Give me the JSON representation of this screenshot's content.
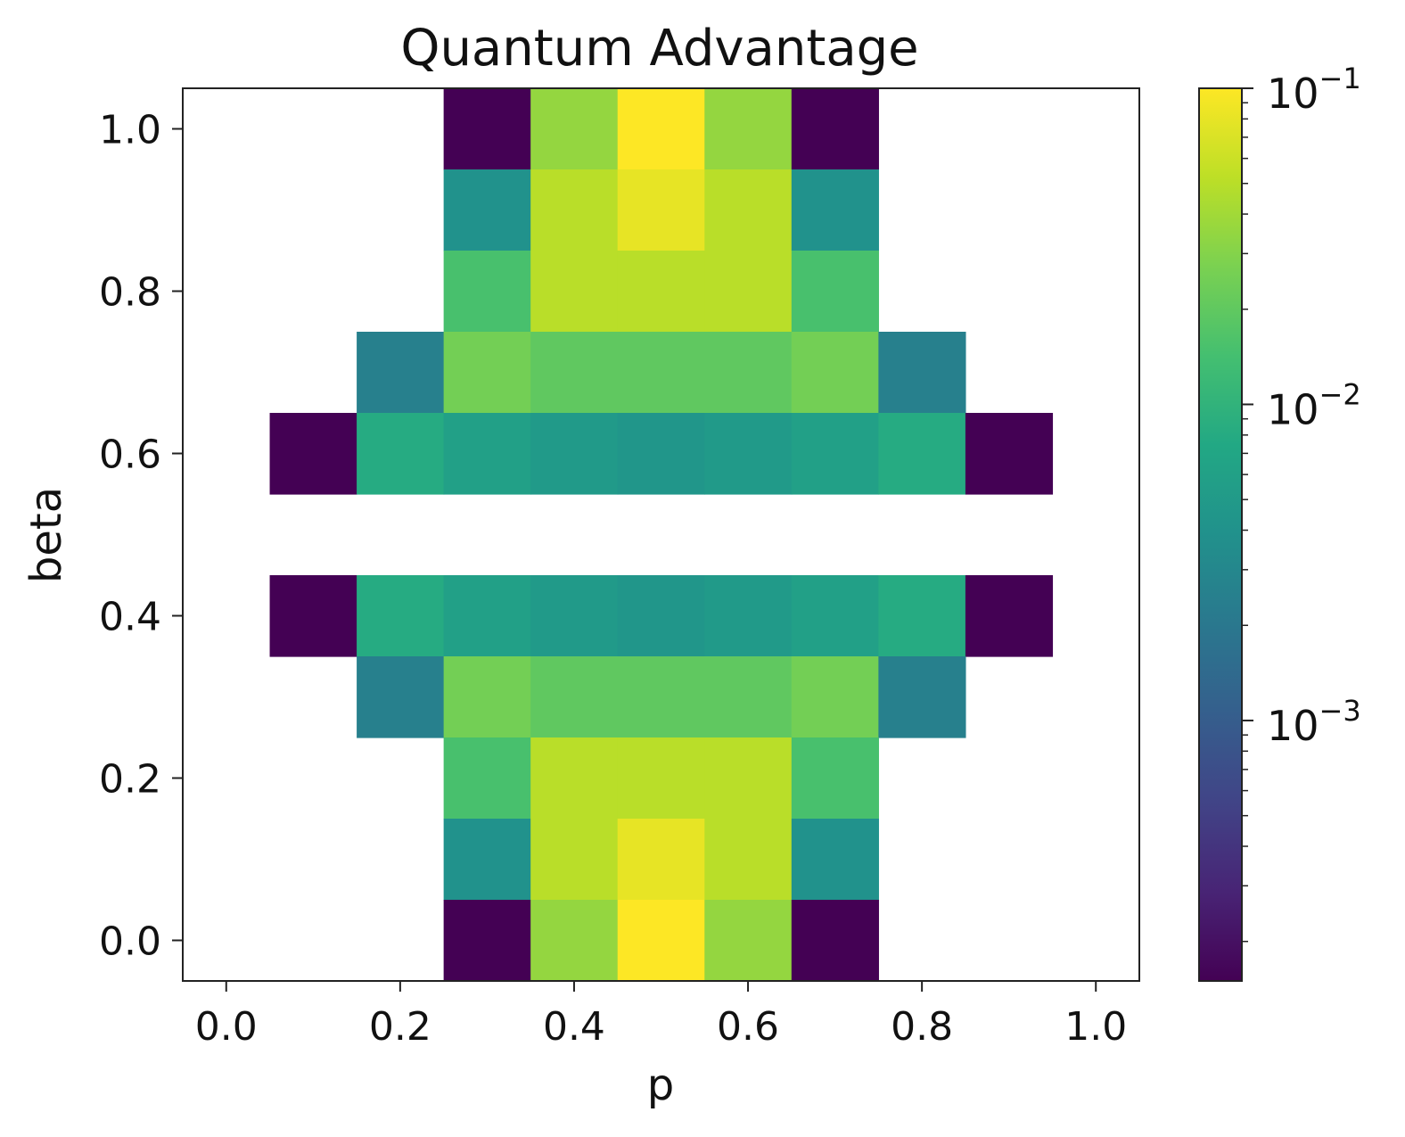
{
  "chart_data": {
    "type": "heatmap",
    "title": "Quantum Advantage",
    "xlabel": "p",
    "ylabel": "beta",
    "xlim": [
      -0.05,
      1.05
    ],
    "ylim": [
      -0.05,
      1.05
    ],
    "x_ticks": [
      0.0,
      0.2,
      0.4,
      0.6,
      0.8,
      1.0
    ],
    "x_tick_labels": [
      "0.0",
      "0.2",
      "0.4",
      "0.6",
      "0.8",
      "1.0"
    ],
    "y_ticks": [
      0.0,
      0.2,
      0.4,
      0.6,
      0.8,
      1.0
    ],
    "y_tick_labels": [
      "0.0",
      "0.2",
      "0.4",
      "0.6",
      "0.8",
      "1.0"
    ],
    "x_centers": [
      0.0,
      0.1,
      0.2,
      0.3,
      0.4,
      0.5,
      0.6,
      0.7,
      0.8,
      0.9,
      1.0
    ],
    "cell_width": 0.1,
    "cell_height": 0.1,
    "colormap": "viridis",
    "color_scale": "log",
    "color_range": [
      0.00015,
      0.1
    ],
    "colorbar": {
      "major_ticks": [
        {
          "value": 0.1,
          "base": "10",
          "exponent": "−1"
        },
        {
          "value": 0.01,
          "base": "10",
          "exponent": "−2"
        },
        {
          "value": 0.001,
          "base": "10",
          "exponent": "−3"
        }
      ],
      "minor_ticks": [
        0.0002,
        0.0003,
        0.0004,
        0.0005,
        0.0006,
        0.0007,
        0.0008,
        0.0009,
        0.002,
        0.003,
        0.004,
        0.005,
        0.006,
        0.007,
        0.008,
        0.009,
        0.02,
        0.03,
        0.04,
        0.05,
        0.06,
        0.07,
        0.08,
        0.09
      ]
    },
    "rows": [
      {
        "beta": 1.0,
        "values": [
          null,
          null,
          null,
          0.00015,
          0.035,
          0.1,
          0.035,
          0.00015,
          null,
          null,
          null
        ]
      },
      {
        "beta": 0.9,
        "values": [
          null,
          null,
          null,
          0.004,
          0.05,
          0.08,
          0.05,
          0.004,
          null,
          null,
          null
        ]
      },
      {
        "beta": 0.8,
        "values": [
          null,
          null,
          null,
          0.015,
          0.05,
          0.05,
          0.05,
          0.015,
          null,
          null,
          null
        ]
      },
      {
        "beta": 0.7,
        "values": [
          null,
          null,
          0.0025,
          0.025,
          0.02,
          0.02,
          0.02,
          0.025,
          0.0025,
          null,
          null
        ]
      },
      {
        "beta": 0.6,
        "values": [
          null,
          0.00015,
          0.008,
          0.006,
          0.005,
          0.0045,
          0.005,
          0.006,
          0.008,
          0.00015,
          null
        ]
      },
      {
        "beta": 0.5,
        "values": [
          null,
          null,
          null,
          null,
          null,
          null,
          null,
          null,
          null,
          null,
          null
        ]
      },
      {
        "beta": 0.4,
        "values": [
          null,
          0.00015,
          0.008,
          0.006,
          0.005,
          0.0045,
          0.005,
          0.006,
          0.008,
          0.00015,
          null
        ]
      },
      {
        "beta": 0.3,
        "values": [
          null,
          null,
          0.0025,
          0.025,
          0.02,
          0.02,
          0.02,
          0.025,
          0.0025,
          null,
          null
        ]
      },
      {
        "beta": 0.2,
        "values": [
          null,
          null,
          null,
          0.015,
          0.05,
          0.05,
          0.05,
          0.015,
          null,
          null,
          null
        ]
      },
      {
        "beta": 0.1,
        "values": [
          null,
          null,
          null,
          0.004,
          0.05,
          0.08,
          0.05,
          0.004,
          null,
          null,
          null
        ]
      },
      {
        "beta": 0.0,
        "values": [
          null,
          null,
          null,
          0.00015,
          0.035,
          0.1,
          0.035,
          0.00015,
          null,
          null,
          null
        ]
      }
    ]
  }
}
